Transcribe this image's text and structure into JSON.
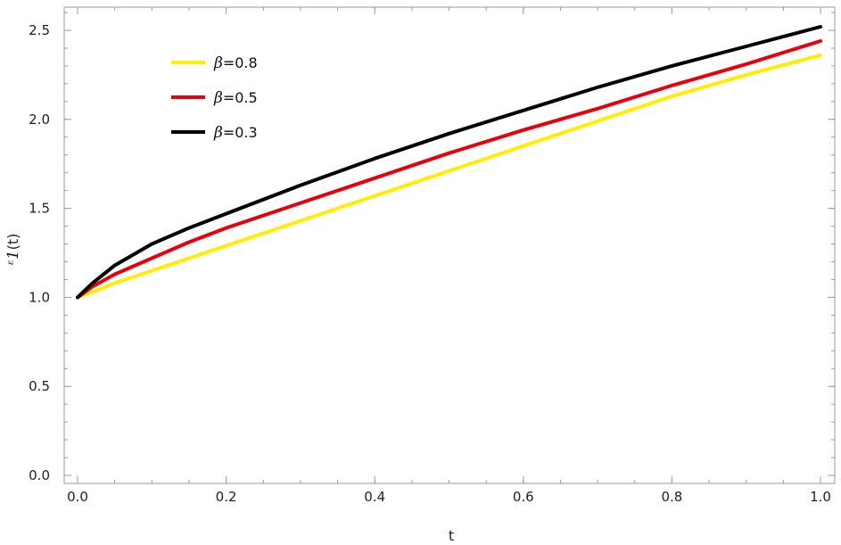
{
  "chart_data": {
    "type": "line",
    "xlabel": "t",
    "ylabel": {
      "symbol": "ᵋ1",
      "arg": "(t)"
    },
    "xlim": [
      0.0,
      1.0
    ],
    "ylim": [
      0.0,
      2.5
    ],
    "x_ticks": [
      "0.0",
      "0.2",
      "0.4",
      "0.6",
      "0.8",
      "1.0"
    ],
    "y_ticks": [
      "0.0",
      "0.5",
      "1.0",
      "1.5",
      "2.0",
      "2.5"
    ],
    "x": [
      0,
      0.02,
      0.05,
      0.1,
      0.15,
      0.2,
      0.3,
      0.4,
      0.5,
      0.6,
      0.7,
      0.8,
      0.9,
      1.0
    ],
    "series": [
      {
        "name": "β=0.8",
        "greek": "β",
        "rest": "=0.8",
        "color": "#ffee00",
        "values": [
          1.0,
          1.03,
          1.08,
          1.15,
          1.22,
          1.29,
          1.43,
          1.57,
          1.71,
          1.85,
          1.99,
          2.13,
          2.25,
          2.36
        ]
      },
      {
        "name": "β=0.5",
        "greek": "β",
        "rest": "=0.5",
        "color": "#e8000b",
        "values": [
          1.0,
          1.06,
          1.13,
          1.22,
          1.31,
          1.39,
          1.53,
          1.67,
          1.81,
          1.94,
          2.06,
          2.19,
          2.31,
          2.44
        ]
      },
      {
        "name": "β=0.3",
        "greek": "β",
        "rest": "=0.3",
        "color": "#000000",
        "values": [
          1.0,
          1.08,
          1.18,
          1.3,
          1.39,
          1.47,
          1.63,
          1.78,
          1.92,
          2.05,
          2.18,
          2.3,
          2.41,
          2.52
        ]
      }
    ],
    "grid": false,
    "legend_position": "top-left"
  }
}
